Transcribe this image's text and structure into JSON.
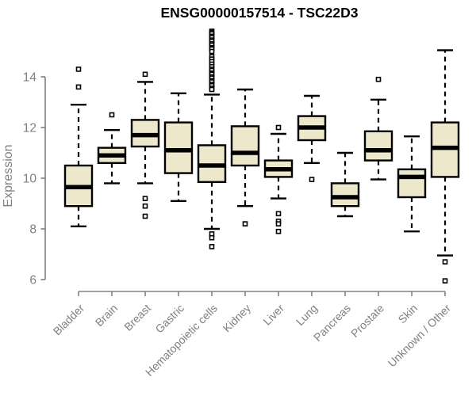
{
  "colors": {
    "box_fill": "#ede8cb",
    "box_stroke": "#000000",
    "median_color": "#000000",
    "whisker_color": "#000000",
    "axis_color": "#808080",
    "tick_label_color": "#808080",
    "title_color": "#000000",
    "background": "#ffffff"
  },
  "chart_data": {
    "type": "boxplot",
    "title": "ENSG00000157514 - TSC22D3",
    "xlabel": "",
    "ylabel": "Expression",
    "ylim": [
      6,
      15.9
    ],
    "yticks": [
      6,
      8,
      10,
      12,
      14
    ],
    "grid": false,
    "legend": "none",
    "x_label_rotation": 45,
    "categories": [
      "Bladder",
      "Brain",
      "Breast",
      "Gastric",
      "Hematopoietic cells",
      "Kidney",
      "Liver",
      "Lung",
      "Pancreas",
      "Prostate",
      "Skin",
      "Unknown / Other"
    ],
    "boxes": [
      {
        "category": "Bladder",
        "whisker_low": 8.1,
        "q1": 8.9,
        "median": 9.65,
        "q3": 10.5,
        "whisker_high": 12.9,
        "outliers": [
          14.3,
          13.6
        ]
      },
      {
        "category": "Brain",
        "whisker_low": 9.8,
        "q1": 10.6,
        "median": 10.9,
        "q3": 11.2,
        "whisker_high": 11.9,
        "outliers": [
          12.5
        ]
      },
      {
        "category": "Breast",
        "whisker_low": 9.8,
        "q1": 11.25,
        "median": 11.7,
        "q3": 12.3,
        "whisker_high": 13.8,
        "outliers": [
          14.1,
          9.2,
          8.9,
          8.5
        ]
      },
      {
        "category": "Gastric",
        "whisker_low": 9.1,
        "q1": 10.2,
        "median": 11.1,
        "q3": 12.2,
        "whisker_high": 13.35,
        "outliers": []
      },
      {
        "category": "Hematopoietic cells",
        "whisker_low": 8.0,
        "q1": 9.85,
        "median": 10.5,
        "q3": 11.3,
        "whisker_high": 13.3,
        "outliers": [
          15.8,
          15.75,
          15.7,
          15.6,
          15.55,
          15.45,
          15.4,
          15.3,
          15.25,
          15.15,
          15.1,
          15.0,
          14.8,
          14.7,
          14.6,
          14.5,
          14.4,
          14.3,
          14.25,
          14.15,
          14.1,
          14.0,
          13.95,
          13.85,
          13.8,
          13.7,
          13.65,
          13.55,
          13.5,
          7.8,
          7.65,
          7.3
        ]
      },
      {
        "category": "Kidney",
        "whisker_low": 8.9,
        "q1": 10.5,
        "median": 11.0,
        "q3": 12.05,
        "whisker_high": 13.5,
        "outliers": [
          8.2
        ]
      },
      {
        "category": "Liver",
        "whisker_low": 9.2,
        "q1": 10.05,
        "median": 10.35,
        "q3": 10.7,
        "whisker_high": 11.75,
        "outliers": [
          12.0,
          8.6,
          8.3,
          8.2,
          7.9
        ]
      },
      {
        "category": "Lung",
        "whisker_low": 10.6,
        "q1": 11.5,
        "median": 12.0,
        "q3": 12.45,
        "whisker_high": 13.25,
        "outliers": [
          9.95
        ]
      },
      {
        "category": "Pancreas",
        "whisker_low": 8.5,
        "q1": 8.9,
        "median": 9.25,
        "q3": 9.8,
        "whisker_high": 11.0,
        "outliers": []
      },
      {
        "category": "Prostate",
        "whisker_low": 9.95,
        "q1": 10.7,
        "median": 11.1,
        "q3": 11.85,
        "whisker_high": 13.1,
        "outliers": [
          13.9
        ]
      },
      {
        "category": "Skin",
        "whisker_low": 7.9,
        "q1": 9.25,
        "median": 10.05,
        "q3": 10.35,
        "whisker_high": 11.65,
        "outliers": []
      },
      {
        "category": "Unknown / Other",
        "whisker_low": 6.95,
        "q1": 10.05,
        "median": 11.2,
        "q3": 12.2,
        "whisker_high": 15.05,
        "outliers": [
          6.7,
          5.95
        ]
      }
    ]
  }
}
